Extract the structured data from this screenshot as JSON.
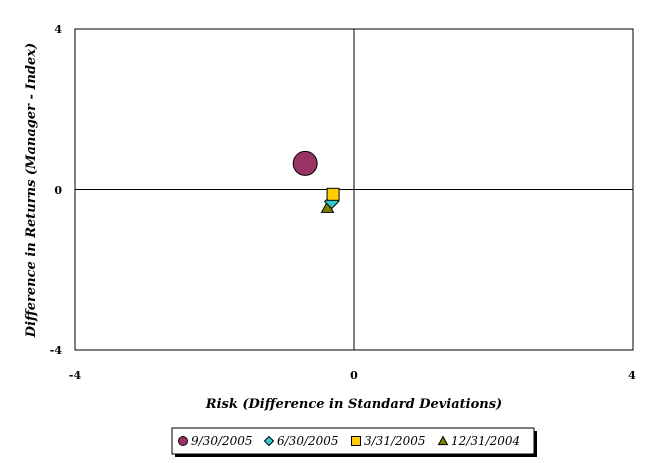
{
  "chart_data": {
    "type": "scatter",
    "title": "",
    "xlabel": "Risk (Difference in Standard Deviations)",
    "ylabel": "Difference in Returns (Manager - Index)",
    "xlim": [
      -4,
      4
    ],
    "ylim": [
      -4,
      4
    ],
    "x_ticks": [
      "-4",
      "0",
      "4"
    ],
    "y_ticks": [
      "4",
      "0",
      "-4"
    ],
    "grid": false,
    "legend_position": "bottom",
    "series": [
      {
        "name": "9/30/2005",
        "marker": "circle",
        "color": "#993366",
        "x": -0.7,
        "y": 0.65
      },
      {
        "name": "6/30/2005",
        "marker": "diamond",
        "color": "#33CCCC",
        "x": -0.32,
        "y": -0.3
      },
      {
        "name": "3/31/2005",
        "marker": "square",
        "color": "#FFCC00",
        "x": -0.3,
        "y": -0.12
      },
      {
        "name": "12/31/2004",
        "marker": "triangle",
        "color": "#808000",
        "x": -0.38,
        "y": -0.45
      }
    ]
  }
}
